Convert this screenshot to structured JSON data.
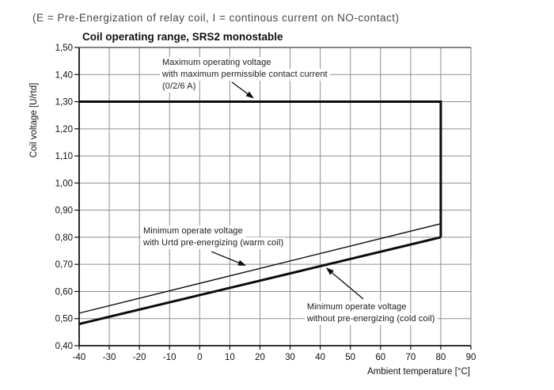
{
  "header": {
    "note": "(E = Pre-Energization of relay coil, I = continous current on NO-contact)"
  },
  "chart_data": {
    "type": "line",
    "title": "Coil operating range, SRS2 monostable",
    "xlabel": "Ambient temperature [°C]",
    "ylabel": "Coil voltage [U/rtd]",
    "xlim": [
      -40,
      90
    ],
    "ylim": [
      0.4,
      1.5
    ],
    "grid": true,
    "x_ticks": [
      -40,
      -30,
      -20,
      -10,
      0,
      10,
      20,
      30,
      40,
      50,
      60,
      70,
      80,
      90
    ],
    "y_ticks": [
      {
        "value": 1.5,
        "label": "1,50"
      },
      {
        "value": 1.4,
        "label": "1,40"
      },
      {
        "value": 1.3,
        "label": "1,30"
      },
      {
        "value": 1.2,
        "label": "1,20"
      },
      {
        "value": 1.1,
        "label": "1,10"
      },
      {
        "value": 1.0,
        "label": "1,00"
      },
      {
        "value": 0.9,
        "label": "0,90"
      },
      {
        "value": 0.8,
        "label": "0,80"
      },
      {
        "value": 0.7,
        "label": "0,70"
      },
      {
        "value": 0.6,
        "label": "0,60"
      },
      {
        "value": 0.5,
        "label": "0,50"
      },
      {
        "value": 0.4,
        "label": "0,40"
      }
    ],
    "series": [
      {
        "key": "max-operating-voltage",
        "name": "Maximum operating voltage with maximum permissible contact current (0/2/6 A)",
        "weight": "thick",
        "points": [
          [
            -40,
            1.3
          ],
          [
            80,
            1.3
          ],
          [
            80,
            0.8
          ]
        ]
      },
      {
        "key": "min-operate-warm-coil",
        "name": "Minimum operate voltage with Urtd pre-energizing (warm coil)",
        "weight": "thin",
        "points": [
          [
            -40,
            0.52
          ],
          [
            80,
            0.85
          ]
        ]
      },
      {
        "key": "min-operate-cold-coil",
        "name": "Minimum operate voltage without pre-energizing (cold coil)",
        "weight": "thick",
        "points": [
          [
            -40,
            0.48
          ],
          [
            80,
            0.8
          ]
        ]
      }
    ],
    "annotations": [
      {
        "key": "max-operating-voltage",
        "lines": [
          "Maximum operating voltage",
          "with maximum permissible contact current",
          "(0/2/6 A)"
        ],
        "anchor": {
          "t": -13.2,
          "v": 1.466
        },
        "arrow": {
          "from": {
            "t": 10.7,
            "v": 1.372
          },
          "to": {
            "t": 18.0,
            "v": 1.312
          }
        }
      },
      {
        "key": "min-operate-warm-coil",
        "lines": [
          "Minimum operate voltage",
          "with Urtd pre-energizing (warm coil)"
        ],
        "anchor": {
          "t": -19.5,
          "v": 0.844
        },
        "arrow": {
          "from": {
            "t": 3.9,
            "v": 0.747
          },
          "to": {
            "t": 15.4,
            "v": 0.695
          }
        }
      },
      {
        "key": "min-operate-cold-coil",
        "lines": [
          "Minimum operate voltage",
          "without pre-energizing (cold coil)"
        ],
        "anchor": {
          "t": 34.8,
          "v": 0.563
        },
        "arrow": {
          "from": {
            "t": 54.3,
            "v": 0.572
          },
          "to": {
            "t": 41.9,
            "v": 0.688
          }
        }
      }
    ]
  }
}
